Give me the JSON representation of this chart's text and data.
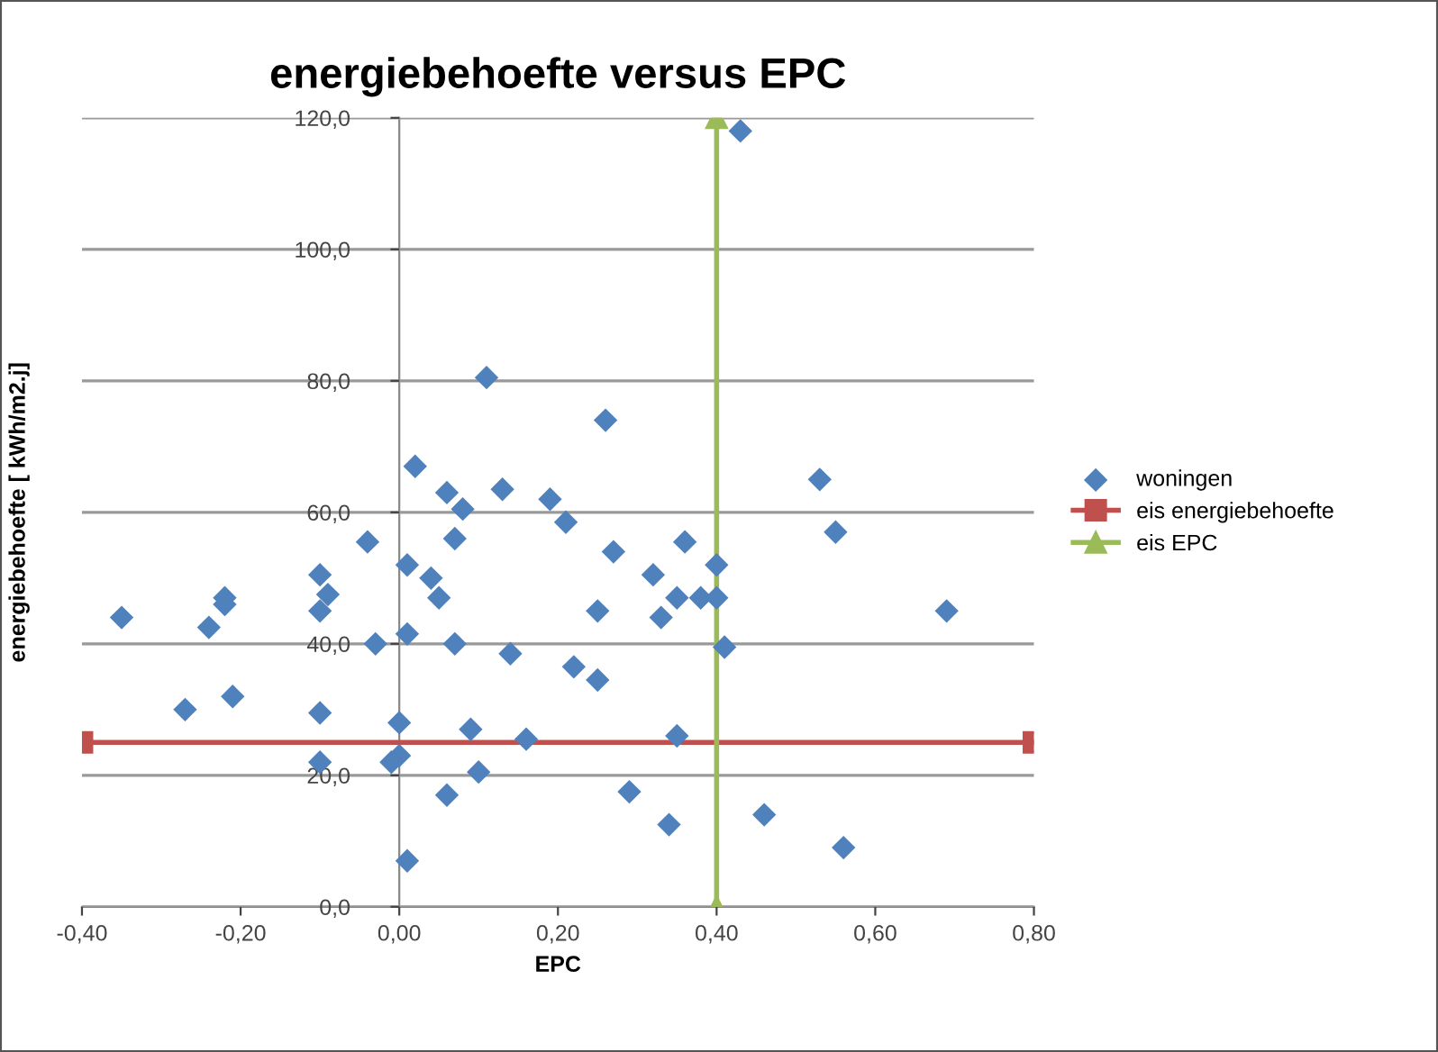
{
  "chart_data": {
    "type": "scatter",
    "title": "energiebehoefte versus EPC",
    "xlabel": "EPC",
    "ylabel": "energiebehoefte [ kWh/m2.j]",
    "xlim": [
      -0.4,
      0.8
    ],
    "ylim": [
      0,
      120
    ],
    "xticks": [
      {
        "value": -0.4,
        "label": "-0,40"
      },
      {
        "value": -0.2,
        "label": "-0,20"
      },
      {
        "value": 0,
        "label": "0,00"
      },
      {
        "value": 0.2,
        "label": "0,20"
      },
      {
        "value": 0.4,
        "label": "0,40"
      },
      {
        "value": 0.6,
        "label": "0,60"
      },
      {
        "value": 0.8,
        "label": "0,80"
      }
    ],
    "yticks": [
      {
        "value": 0,
        "label": "0,0"
      },
      {
        "value": 20,
        "label": "20,0"
      },
      {
        "value": 40,
        "label": "40,0"
      },
      {
        "value": 60,
        "label": "60,0"
      },
      {
        "value": 80,
        "label": "80,0"
      },
      {
        "value": 100,
        "label": "100,0"
      },
      {
        "value": 120,
        "label": "120,0"
      }
    ],
    "grid": "y",
    "legend": "right",
    "series": [
      {
        "name": "woningen",
        "marker": "diamond",
        "color": "#4f81bd",
        "x": [
          -0.35,
          -0.27,
          -0.24,
          -0.22,
          -0.22,
          -0.21,
          -0.1,
          -0.09,
          -0.1,
          -0.1,
          -0.1,
          -0.04,
          -0.03,
          0.0,
          0.0,
          -0.01,
          0.01,
          0.01,
          0.01,
          0.02,
          0.04,
          0.05,
          0.06,
          0.07,
          0.07,
          0.06,
          0.08,
          0.09,
          0.1,
          0.11,
          0.13,
          0.14,
          0.16,
          0.19,
          0.21,
          0.22,
          0.25,
          0.25,
          0.26,
          0.27,
          0.29,
          0.32,
          0.33,
          0.34,
          0.35,
          0.35,
          0.36,
          0.38,
          0.4,
          0.4,
          0.41,
          0.43,
          0.46,
          0.53,
          0.55,
          0.56,
          0.69
        ],
        "values": [
          44,
          30,
          42.5,
          47,
          46,
          32,
          50.5,
          47.5,
          45,
          29.5,
          22,
          55.5,
          40,
          28,
          23,
          22,
          52,
          41.5,
          7,
          67,
          50,
          47,
          63,
          56,
          40,
          17,
          60.5,
          27,
          20.5,
          80.5,
          63.5,
          38.5,
          25.5,
          62,
          58.5,
          36.5,
          34.5,
          45,
          74,
          54,
          17.5,
          50.5,
          44,
          12.5,
          47,
          26,
          55.5,
          47,
          52,
          47,
          39.5,
          118,
          14,
          65,
          57,
          9,
          45
        ]
      },
      {
        "name": "eis energiebehoefte",
        "type": "line",
        "marker": "square",
        "line_style": "solid",
        "color": "#c0504d",
        "x": [
          -0.4,
          0.8
        ],
        "values": [
          25,
          25
        ]
      },
      {
        "name": "eis EPC",
        "type": "line",
        "marker": "triangle",
        "line_style": "solid",
        "color": "#9bbb59",
        "x": [
          0.4,
          0.4
        ],
        "values": [
          0,
          120
        ]
      }
    ]
  }
}
